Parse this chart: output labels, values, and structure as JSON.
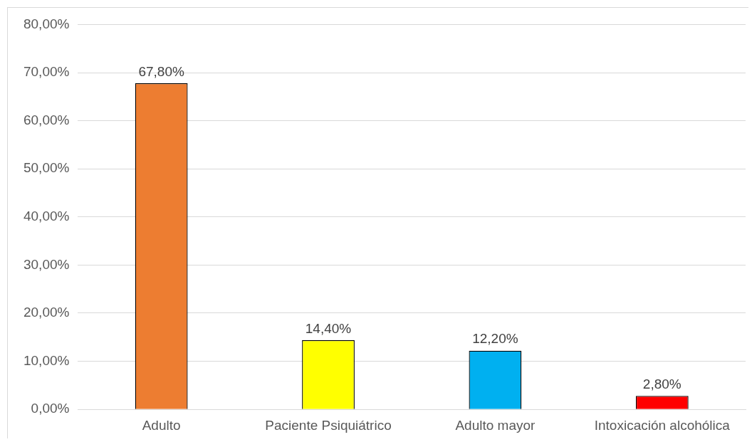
{
  "chart_data": {
    "type": "bar",
    "categories": [
      "Adulto",
      "Paciente Psiquiátrico",
      "Adulto mayor",
      "Intoxicación alcohólica"
    ],
    "values": [
      67.8,
      14.4,
      12.2,
      2.8
    ],
    "colors": [
      "#ed7d31",
      "#ffff00",
      "#00b0f0",
      "#ff0000"
    ],
    "value_labels": [
      "67,80%",
      "14,40%",
      "12,20%",
      "2,80%"
    ],
    "ylim": [
      0,
      80
    ],
    "yticks": [
      {
        "value": 0,
        "label": "0,00%"
      },
      {
        "value": 10,
        "label": "10,00%"
      },
      {
        "value": 20,
        "label": "20,00%"
      },
      {
        "value": 30,
        "label": "30,00%"
      },
      {
        "value": 40,
        "label": "40,00%"
      },
      {
        "value": 50,
        "label": "50,00%"
      },
      {
        "value": 60,
        "label": "60,00%"
      },
      {
        "value": 70,
        "label": "70,00%"
      },
      {
        "value": 80,
        "label": "80,00%"
      }
    ],
    "grid": "y",
    "legend": false
  }
}
